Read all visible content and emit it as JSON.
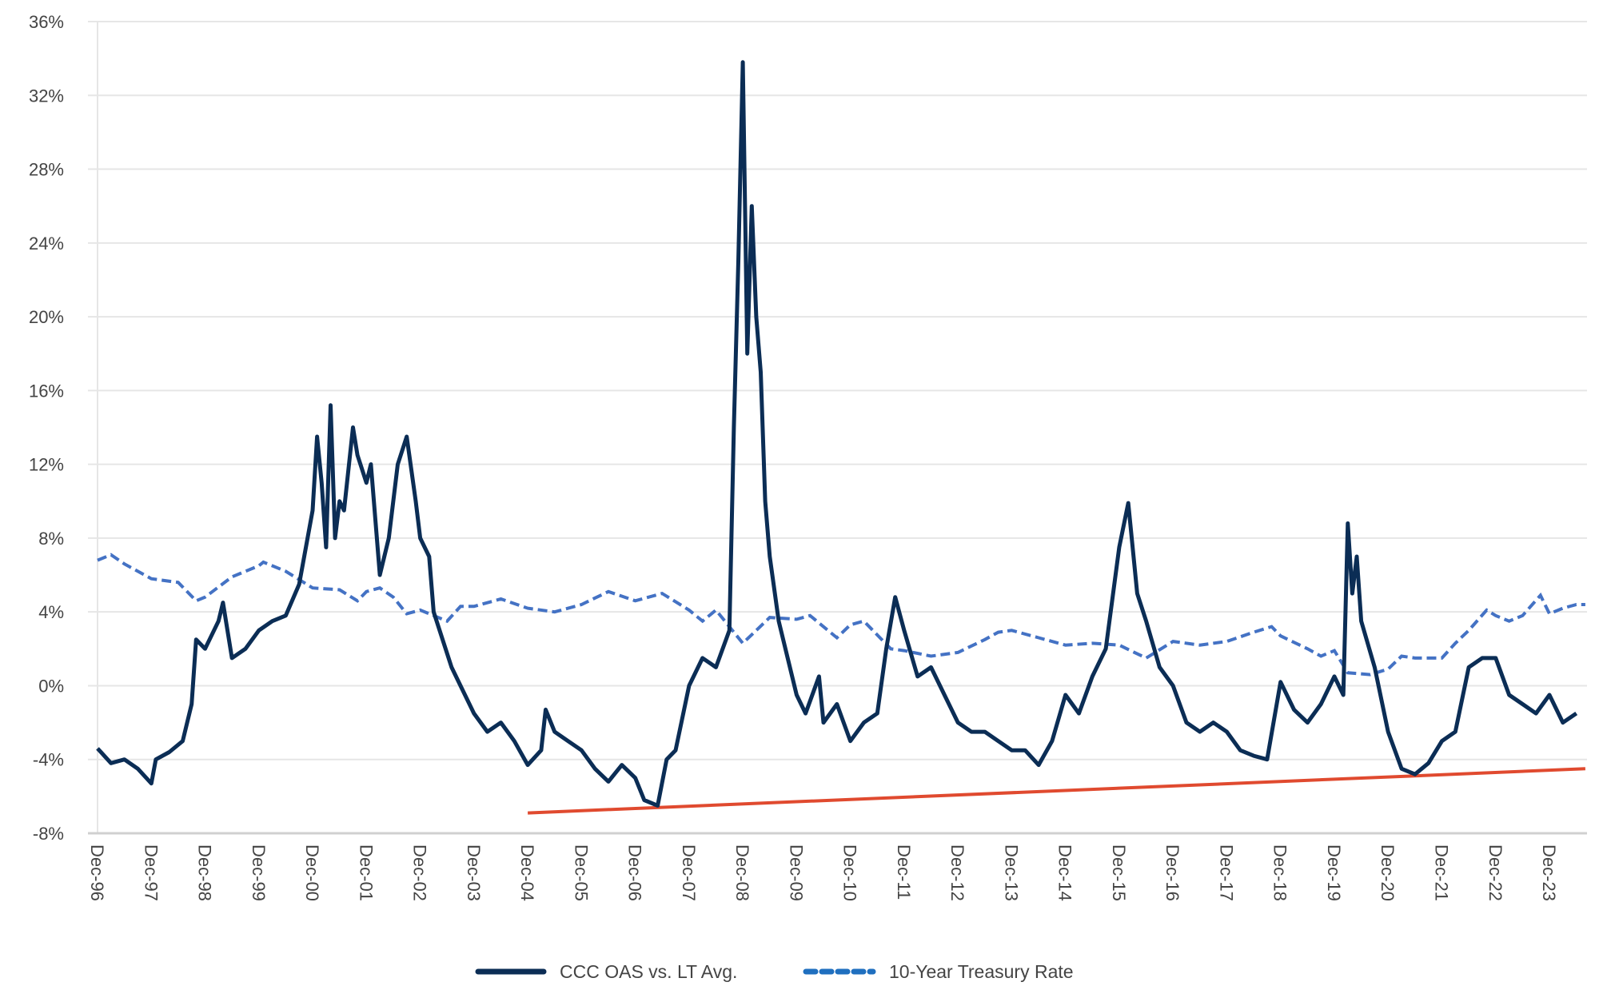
{
  "chart_data": {
    "type": "line",
    "title": "",
    "xlabel": "",
    "ylabel": "",
    "ylim": [
      -8,
      36
    ],
    "y_ticks": [
      "-8%",
      "-4%",
      "0%",
      "4%",
      "8%",
      "12%",
      "16%",
      "20%",
      "24%",
      "28%",
      "32%",
      "36%"
    ],
    "y_tick_values": [
      -8,
      -4,
      0,
      4,
      8,
      12,
      16,
      20,
      24,
      28,
      32,
      36
    ],
    "x_ticks": [
      "Dec-96",
      "Dec-97",
      "Dec-98",
      "Dec-99",
      "Dec-00",
      "Dec-01",
      "Dec-02",
      "Dec-03",
      "Dec-04",
      "Dec-05",
      "Dec-06",
      "Dec-07",
      "Dec-08",
      "Dec-09",
      "Dec-10",
      "Dec-11",
      "Dec-12",
      "Dec-13",
      "Dec-14",
      "Dec-15",
      "Dec-16",
      "Dec-17",
      "Dec-18",
      "Dec-19",
      "Dec-20",
      "Dec-21",
      "Dec-22",
      "Dec-23"
    ],
    "grid": "horizontal",
    "legend_position": "bottom",
    "colors": {
      "ccc": "#0b2d55",
      "treasury": "#4472c4",
      "trend": "#e04a2f",
      "grid": "#e6e6e6",
      "text": "#444444"
    },
    "series": [
      {
        "name": "CCC OAS vs. LT Avg.",
        "style": "solid",
        "points": [
          [
            "1996-12",
            -3.4
          ],
          [
            "1997-03",
            -4.2
          ],
          [
            "1997-06",
            -4.0
          ],
          [
            "1997-09",
            -4.5
          ],
          [
            "1997-12",
            -5.3
          ],
          [
            "1998-01",
            -4.0
          ],
          [
            "1998-04",
            -3.6
          ],
          [
            "1998-07",
            -3.0
          ],
          [
            "1998-09",
            -1.0
          ],
          [
            "1998-10",
            2.5
          ],
          [
            "1998-12",
            2.0
          ],
          [
            "1999-03",
            3.5
          ],
          [
            "1999-04",
            4.5
          ],
          [
            "1999-06",
            1.5
          ],
          [
            "1999-09",
            2.0
          ],
          [
            "1999-12",
            3.0
          ],
          [
            "2000-03",
            3.5
          ],
          [
            "2000-06",
            3.8
          ],
          [
            "2000-09",
            5.5
          ],
          [
            "2000-12",
            9.5
          ],
          [
            "2001-01",
            13.5
          ],
          [
            "2001-02",
            11.0
          ],
          [
            "2001-03",
            7.5
          ],
          [
            "2001-04",
            15.2
          ],
          [
            "2001-05",
            8.0
          ],
          [
            "2001-06",
            10.0
          ],
          [
            "2001-07",
            9.5
          ],
          [
            "2001-09",
            14.0
          ],
          [
            "2001-10",
            12.5
          ],
          [
            "2001-12",
            11.0
          ],
          [
            "2002-01",
            12.0
          ],
          [
            "2002-02",
            9.0
          ],
          [
            "2002-03",
            6.0
          ],
          [
            "2002-05",
            8.0
          ],
          [
            "2002-07",
            12.0
          ],
          [
            "2002-09",
            13.5
          ],
          [
            "2002-11",
            10.0
          ],
          [
            "2002-12",
            8.0
          ],
          [
            "2003-02",
            7.0
          ],
          [
            "2003-03",
            4.0
          ],
          [
            "2003-05",
            2.5
          ],
          [
            "2003-07",
            1.0
          ],
          [
            "2003-09",
            0.0
          ],
          [
            "2003-12",
            -1.5
          ],
          [
            "2004-03",
            -2.5
          ],
          [
            "2004-06",
            -2.0
          ],
          [
            "2004-09",
            -3.0
          ],
          [
            "2004-12",
            -4.3
          ],
          [
            "2005-03",
            -3.5
          ],
          [
            "2005-04",
            -1.3
          ],
          [
            "2005-06",
            -2.5
          ],
          [
            "2005-09",
            -3.0
          ],
          [
            "2005-12",
            -3.5
          ],
          [
            "2006-03",
            -4.5
          ],
          [
            "2006-06",
            -5.2
          ],
          [
            "2006-09",
            -4.3
          ],
          [
            "2006-12",
            -5.0
          ],
          [
            "2007-02",
            -6.2
          ],
          [
            "2007-05",
            -6.5
          ],
          [
            "2007-07",
            -4.0
          ],
          [
            "2007-09",
            -3.5
          ],
          [
            "2007-12",
            0.0
          ],
          [
            "2008-03",
            1.5
          ],
          [
            "2008-06",
            1.0
          ],
          [
            "2008-09",
            3.0
          ],
          [
            "2008-10",
            14.0
          ],
          [
            "2008-11",
            23.0
          ],
          [
            "2008-12",
            33.8
          ],
          [
            "2009-01",
            18.0
          ],
          [
            "2009-02",
            26.0
          ],
          [
            "2009-03",
            20.0
          ],
          [
            "2009-04",
            17.0
          ],
          [
            "2009-05",
            10.0
          ],
          [
            "2009-06",
            7.0
          ],
          [
            "2009-08",
            3.5
          ],
          [
            "2009-10",
            1.5
          ],
          [
            "2009-12",
            -0.5
          ],
          [
            "2010-02",
            -1.5
          ],
          [
            "2010-05",
            0.5
          ],
          [
            "2010-06",
            -2.0
          ],
          [
            "2010-09",
            -1.0
          ],
          [
            "2010-12",
            -3.0
          ],
          [
            "2011-03",
            -2.0
          ],
          [
            "2011-06",
            -1.5
          ],
          [
            "2011-08",
            2.0
          ],
          [
            "2011-10",
            4.8
          ],
          [
            "2011-12",
            3.0
          ],
          [
            "2012-03",
            0.5
          ],
          [
            "2012-06",
            1.0
          ],
          [
            "2012-09",
            -0.5
          ],
          [
            "2012-12",
            -2.0
          ],
          [
            "2013-03",
            -2.5
          ],
          [
            "2013-06",
            -2.5
          ],
          [
            "2013-09",
            -3.0
          ],
          [
            "2013-12",
            -3.5
          ],
          [
            "2014-03",
            -3.5
          ],
          [
            "2014-06",
            -4.3
          ],
          [
            "2014-09",
            -3.0
          ],
          [
            "2014-12",
            -0.5
          ],
          [
            "2015-03",
            -1.5
          ],
          [
            "2015-06",
            0.5
          ],
          [
            "2015-09",
            2.0
          ],
          [
            "2015-12",
            7.5
          ],
          [
            "2016-02",
            9.9
          ],
          [
            "2016-04",
            5.0
          ],
          [
            "2016-06",
            3.5
          ],
          [
            "2016-09",
            1.0
          ],
          [
            "2016-12",
            0.0
          ],
          [
            "2017-03",
            -2.0
          ],
          [
            "2017-06",
            -2.5
          ],
          [
            "2017-09",
            -2.0
          ],
          [
            "2017-12",
            -2.5
          ],
          [
            "2018-03",
            -3.5
          ],
          [
            "2018-06",
            -3.8
          ],
          [
            "2018-09",
            -4.0
          ],
          [
            "2018-12",
            0.2
          ],
          [
            "2019-03",
            -1.3
          ],
          [
            "2019-06",
            -2.0
          ],
          [
            "2019-09",
            -1.0
          ],
          [
            "2019-12",
            0.5
          ],
          [
            "2020-02",
            -0.5
          ],
          [
            "2020-03",
            8.8
          ],
          [
            "2020-04",
            5.0
          ],
          [
            "2020-05",
            7.0
          ],
          [
            "2020-06",
            3.5
          ],
          [
            "2020-09",
            1.0
          ],
          [
            "2020-12",
            -2.5
          ],
          [
            "2021-03",
            -4.5
          ],
          [
            "2021-06",
            -4.8
          ],
          [
            "2021-09",
            -4.2
          ],
          [
            "2021-12",
            -3.0
          ],
          [
            "2022-03",
            -2.5
          ],
          [
            "2022-06",
            1.0
          ],
          [
            "2022-09",
            1.5
          ],
          [
            "2022-12",
            1.5
          ],
          [
            "2023-03",
            -0.5
          ],
          [
            "2023-06",
            -1.0
          ],
          [
            "2023-09",
            -1.5
          ],
          [
            "2023-12",
            -0.5
          ],
          [
            "2024-03",
            -2.0
          ],
          [
            "2024-06",
            -1.5
          ]
        ]
      },
      {
        "name": "10-Year Treasury Rate",
        "style": "dashed",
        "points": [
          [
            "1996-12",
            6.8
          ],
          [
            "1997-03",
            7.1
          ],
          [
            "1997-06",
            6.6
          ],
          [
            "1997-09",
            6.2
          ],
          [
            "1997-12",
            5.8
          ],
          [
            "1998-06",
            5.6
          ],
          [
            "1998-10",
            4.6
          ],
          [
            "1998-12",
            4.8
          ],
          [
            "1999-06",
            5.9
          ],
          [
            "1999-12",
            6.5
          ],
          [
            "2000-01",
            6.7
          ],
          [
            "2000-06",
            6.2
          ],
          [
            "2000-12",
            5.3
          ],
          [
            "2001-06",
            5.2
          ],
          [
            "2001-10",
            4.6
          ],
          [
            "2001-12",
            5.1
          ],
          [
            "2002-03",
            5.3
          ],
          [
            "2002-06",
            4.8
          ],
          [
            "2002-09",
            3.9
          ],
          [
            "2002-12",
            4.1
          ],
          [
            "2003-06",
            3.5
          ],
          [
            "2003-09",
            4.3
          ],
          [
            "2003-12",
            4.3
          ],
          [
            "2004-06",
            4.7
          ],
          [
            "2004-12",
            4.2
          ],
          [
            "2005-06",
            4.0
          ],
          [
            "2005-12",
            4.4
          ],
          [
            "2006-06",
            5.1
          ],
          [
            "2006-12",
            4.6
          ],
          [
            "2007-06",
            5.0
          ],
          [
            "2007-12",
            4.1
          ],
          [
            "2008-03",
            3.5
          ],
          [
            "2008-06",
            4.1
          ],
          [
            "2008-12",
            2.3
          ],
          [
            "2009-06",
            3.7
          ],
          [
            "2009-12",
            3.6
          ],
          [
            "2010-03",
            3.8
          ],
          [
            "2010-09",
            2.6
          ],
          [
            "2010-12",
            3.3
          ],
          [
            "2011-03",
            3.5
          ],
          [
            "2011-09",
            2.0
          ],
          [
            "2011-12",
            1.9
          ],
          [
            "2012-06",
            1.6
          ],
          [
            "2012-12",
            1.8
          ],
          [
            "2013-06",
            2.5
          ],
          [
            "2013-09",
            2.9
          ],
          [
            "2013-12",
            3.0
          ],
          [
            "2014-06",
            2.6
          ],
          [
            "2014-12",
            2.2
          ],
          [
            "2015-06",
            2.3
          ],
          [
            "2015-12",
            2.2
          ],
          [
            "2016-06",
            1.5
          ],
          [
            "2016-12",
            2.4
          ],
          [
            "2017-06",
            2.2
          ],
          [
            "2017-12",
            2.4
          ],
          [
            "2018-06",
            2.9
          ],
          [
            "2018-10",
            3.2
          ],
          [
            "2018-12",
            2.7
          ],
          [
            "2019-06",
            2.0
          ],
          [
            "2019-09",
            1.6
          ],
          [
            "2019-12",
            1.9
          ],
          [
            "2020-03",
            0.7
          ],
          [
            "2020-08",
            0.6
          ],
          [
            "2020-12",
            0.9
          ],
          [
            "2021-03",
            1.6
          ],
          [
            "2021-06",
            1.5
          ],
          [
            "2021-12",
            1.5
          ],
          [
            "2022-03",
            2.3
          ],
          [
            "2022-06",
            3.0
          ],
          [
            "2022-10",
            4.1
          ],
          [
            "2022-12",
            3.8
          ],
          [
            "2023-03",
            3.5
          ],
          [
            "2023-06",
            3.8
          ],
          [
            "2023-10",
            4.9
          ],
          [
            "2023-12",
            3.9
          ],
          [
            "2024-03",
            4.2
          ],
          [
            "2024-06",
            4.4
          ],
          [
            "2024-08",
            4.4
          ]
        ]
      }
    ],
    "trend_line": {
      "points": [
        [
          "2004-12",
          -6.9
        ],
        [
          "2024-08",
          -4.5
        ]
      ]
    }
  }
}
